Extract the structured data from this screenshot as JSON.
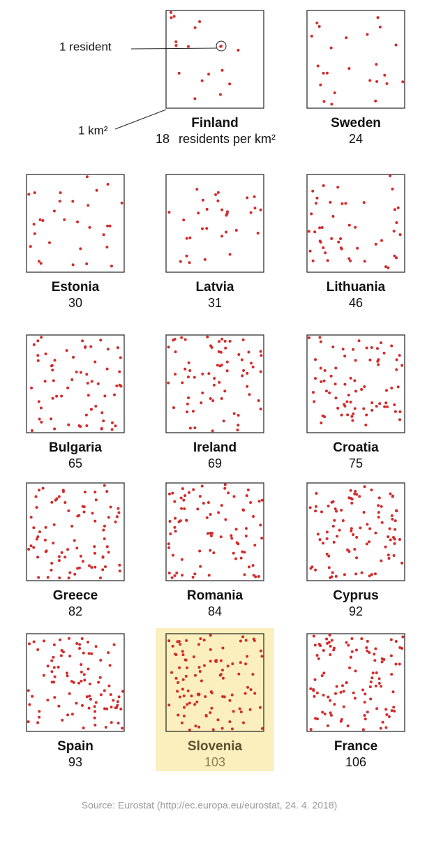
{
  "chart_data": {
    "type": "dot-density",
    "categories": [
      "Finland",
      "Sweden",
      "Estonia",
      "Latvia",
      "Lithuania",
      "Bulgaria",
      "Ireland",
      "Croatia",
      "Greece",
      "Romania",
      "Cyprus",
      "Spain",
      "Slovenia",
      "France"
    ],
    "values": [
      18,
      24,
      30,
      31,
      46,
      65,
      69,
      75,
      82,
      84,
      92,
      93,
      103,
      106
    ],
    "unit_label": "residents per km²",
    "legend_dot": "1 resident",
    "legend_square": "1 km²",
    "highlight": "Slovenia",
    "color": "#d42a2a",
    "highlight_color": "#fbefbd",
    "source": "Source: Eurostat (http://ec.europa.eu/eurostat, 24. 4. 2018)"
  }
}
